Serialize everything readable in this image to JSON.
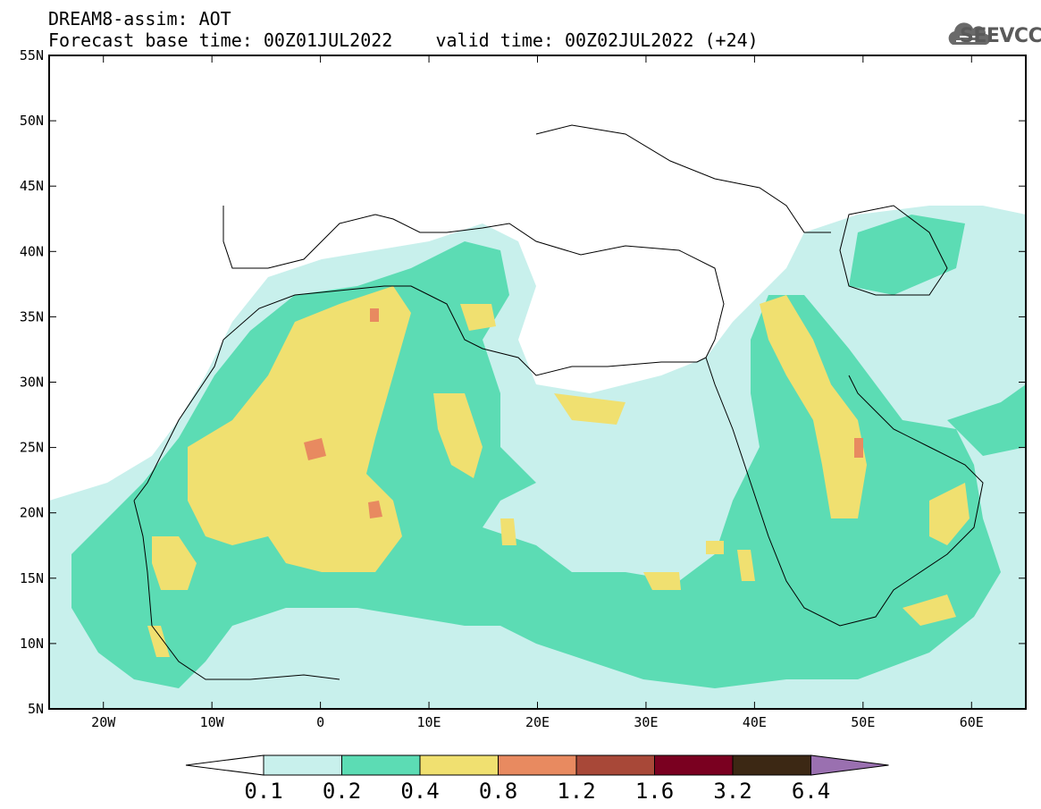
{
  "header": {
    "line1": "DREAM8-assim: AOT",
    "line2": "Forecast base time: 00Z01JUL2022    valid time: 00Z02JUL2022 (+24)",
    "logo_text": "SEEVCCC"
  },
  "map": {
    "lon_range": [
      -25,
      65
    ],
    "lat_range": [
      5,
      55
    ],
    "lat_ticks": [
      {
        "value": 55,
        "label": "55N"
      },
      {
        "value": 50,
        "label": "50N"
      },
      {
        "value": 45,
        "label": "45N"
      },
      {
        "value": 40,
        "label": "40N"
      },
      {
        "value": 35,
        "label": "35N"
      },
      {
        "value": 30,
        "label": "30N"
      },
      {
        "value": 25,
        "label": "25N"
      },
      {
        "value": 20,
        "label": "20N"
      },
      {
        "value": 15,
        "label": "15N"
      },
      {
        "value": 10,
        "label": "10N"
      },
      {
        "value": 5,
        "label": "5N"
      }
    ],
    "lon_ticks": [
      {
        "value": -20,
        "label": "20W"
      },
      {
        "value": -10,
        "label": "10W"
      },
      {
        "value": 0,
        "label": "0"
      },
      {
        "value": 10,
        "label": "10E"
      },
      {
        "value": 20,
        "label": "20E"
      },
      {
        "value": 30,
        "label": "30E"
      },
      {
        "value": 40,
        "label": "40E"
      },
      {
        "value": 50,
        "label": "50E"
      },
      {
        "value": 60,
        "label": "60E"
      }
    ]
  },
  "colorbar": {
    "labels": [
      "0.1",
      "0.2",
      "0.4",
      "0.8",
      "1.2",
      "1.6",
      "3.2",
      "6.4"
    ],
    "colors": [
      "#c8f0ec",
      "#5cdcb4",
      "#f0e070",
      "#e88a60",
      "#a84838",
      "#7a0020",
      "#3c2814"
    ],
    "over_color": "#9a70b0",
    "under_color": "#ffffff"
  }
}
